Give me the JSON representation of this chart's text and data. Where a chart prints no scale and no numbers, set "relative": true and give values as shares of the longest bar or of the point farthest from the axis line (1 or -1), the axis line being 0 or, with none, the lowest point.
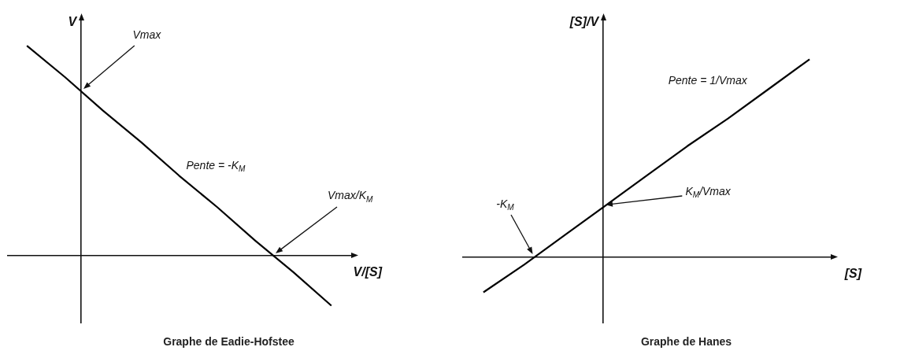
{
  "chart_data": [
    {
      "type": "line",
      "title": "Graphe de Eadie-Hofstee",
      "xlabel": "V/[S]",
      "ylabel": "V",
      "relative": true,
      "marker": "none",
      "color": "#000000",
      "categories": [
        null,
        null,
        null,
        null,
        null,
        null,
        null,
        null,
        null
      ],
      "values": [
        1,
        0.85,
        0.69,
        0.54,
        0.38,
        0.23,
        0.07,
        -0.08,
        -0.24
      ],
      "annotations": [
        "Vmax",
        "Pente = -K$_{M}$",
        "Vmax/K$_{M}$"
      ]
    },
    {
      "type": "line",
      "title": "Graphe de Hanes",
      "xlabel": "[S]",
      "ylabel": "[S]/V",
      "relative": true,
      "marker": "none",
      "color": "#000000",
      "categories": [
        null,
        null,
        null,
        null,
        null,
        null,
        null,
        null,
        null
      ],
      "values": [
        -0.18,
        -0.04,
        0.11,
        0.26,
        0.41,
        0.56,
        0.7,
        0.85,
        1
      ],
      "annotations": [
        "Pente = 1/Vmax",
        "K$_{M}$/Vmax",
        "-K$_{M}$"
      ]
    }
  ]
}
